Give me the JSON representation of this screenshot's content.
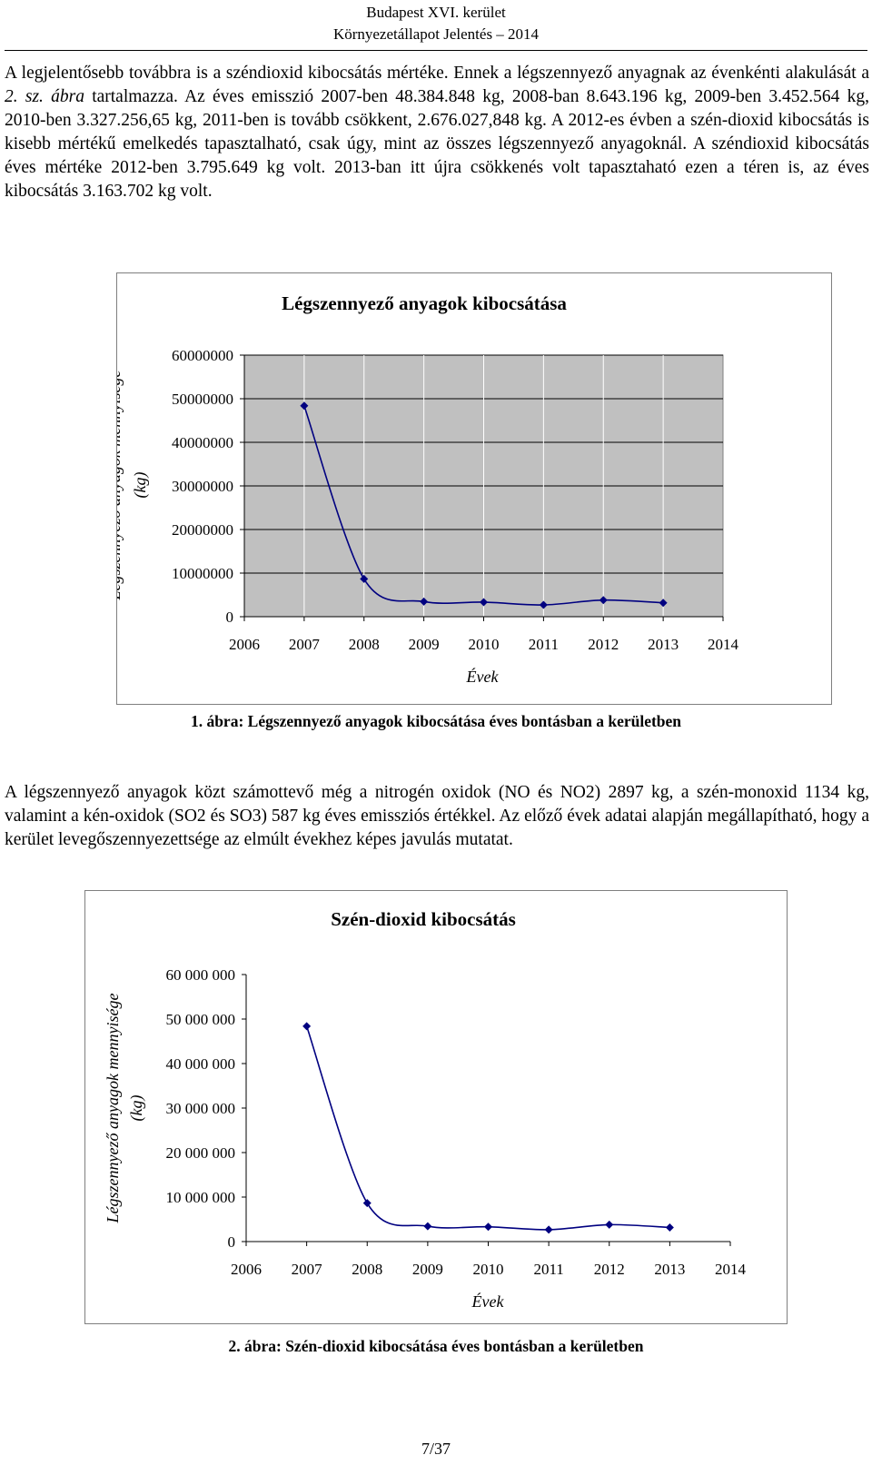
{
  "header": {
    "line1": "Budapest XVI. kerület",
    "line2": "Környezetállapot Jelentés – 2014"
  },
  "paragraph1": {
    "a": "A legjelentősebb továbbra is a széndioxid kibocsátás mértéke. Ennek a légszennyező anyagnak az évenkénti alakulását a ",
    "ref": "2. sz. ábra",
    "b": " tartalmazza. Az éves emisszió 2007-ben 48.384.848 kg, 2008-ban 8.643.196 kg, 2009-ben 3.452.564 kg, 2010-ben 3.327.256,65 kg, 2011-ben is tovább csökkent, 2.676.027,848 kg. A 2012-es évben a szén-dioxid kibocsátás is kisebb mértékű emelkedés tapasztalható, csak úgy, mint az összes légszennyező anyagoknál. A széndioxid kibocsátás éves mértéke 2012-ben 3.795.649 kg volt. 2013-ban itt újra csökkenés volt tapasztaható ezen a téren is, az éves kibocsátás 3.163.702 kg volt."
  },
  "paragraph2": "A légszennyező anyagok közt számottevő még a nitrogén oxidok (NO és NO2) 2897 kg, a szén-monoxid 1134 kg, valamint a kén-oxidok (SO2 és SO3) 587 kg éves emissziós értékkel. Az előző évek adatai alapján megállapítható, hogy a kerület levegőszennyezettsége az elmúlt évekhez képes javulás mutatat.",
  "caption1": "1. ábra: Légszennyező anyagok kibocsátása éves bontásban a kerületben",
  "caption2": "2. ábra: Szén-dioxid kibocsátása éves bontásban a kerületben",
  "page_number": "7/37",
  "colors": {
    "series": "#000080",
    "plot_area": "#c0c0c0",
    "gridline": "#000000",
    "border": "#7f7f7f"
  },
  "chart_data": [
    {
      "type": "line",
      "title": "Légszennyező anyagok kibocsátása",
      "xlabel": "Évek",
      "ylabel_line1": "Légszennyező anyagok mennyisége",
      "ylabel_line2": "(kg)",
      "x_ticks": [
        "2006",
        "2007",
        "2008",
        "2009",
        "2010",
        "2011",
        "2012",
        "2013",
        "2014"
      ],
      "y_ticks": [
        "0",
        "10000000",
        "20000000",
        "30000000",
        "40000000",
        "50000000",
        "60000000"
      ],
      "xlim": [
        2006,
        2014
      ],
      "ylim": [
        0,
        60000000
      ],
      "grid": "horizontal",
      "smooth": true,
      "series": [
        {
          "x": [
            2007,
            2008,
            2009,
            2010,
            2011,
            2012,
            2013
          ],
          "y": [
            48390000,
            8660000,
            3470000,
            3340000,
            2700000,
            3810000,
            3180000
          ]
        }
      ]
    },
    {
      "type": "line",
      "title": "Szén-dioxid kibocsátás",
      "xlabel": "Évek",
      "ylabel_line1": "Légszennyező anyagok mennyisége",
      "ylabel_line2": "(kg)",
      "x_ticks": [
        "2006",
        "2007",
        "2008",
        "2009",
        "2010",
        "2011",
        "2012",
        "2013",
        "2014"
      ],
      "y_ticks": [
        "0",
        "10 000 000",
        "20 000 000",
        "30 000 000",
        "40 000 000",
        "50 000 000",
        "60 000 000"
      ],
      "xlim": [
        2006,
        2014
      ],
      "ylim": [
        0,
        60000000
      ],
      "grid": "none",
      "smooth": true,
      "series": [
        {
          "x": [
            2007,
            2008,
            2009,
            2010,
            2011,
            2012,
            2013
          ],
          "y": [
            48384848,
            8643196,
            3452564,
            3327257,
            2676028,
            3795649,
            3163702
          ]
        }
      ]
    }
  ]
}
